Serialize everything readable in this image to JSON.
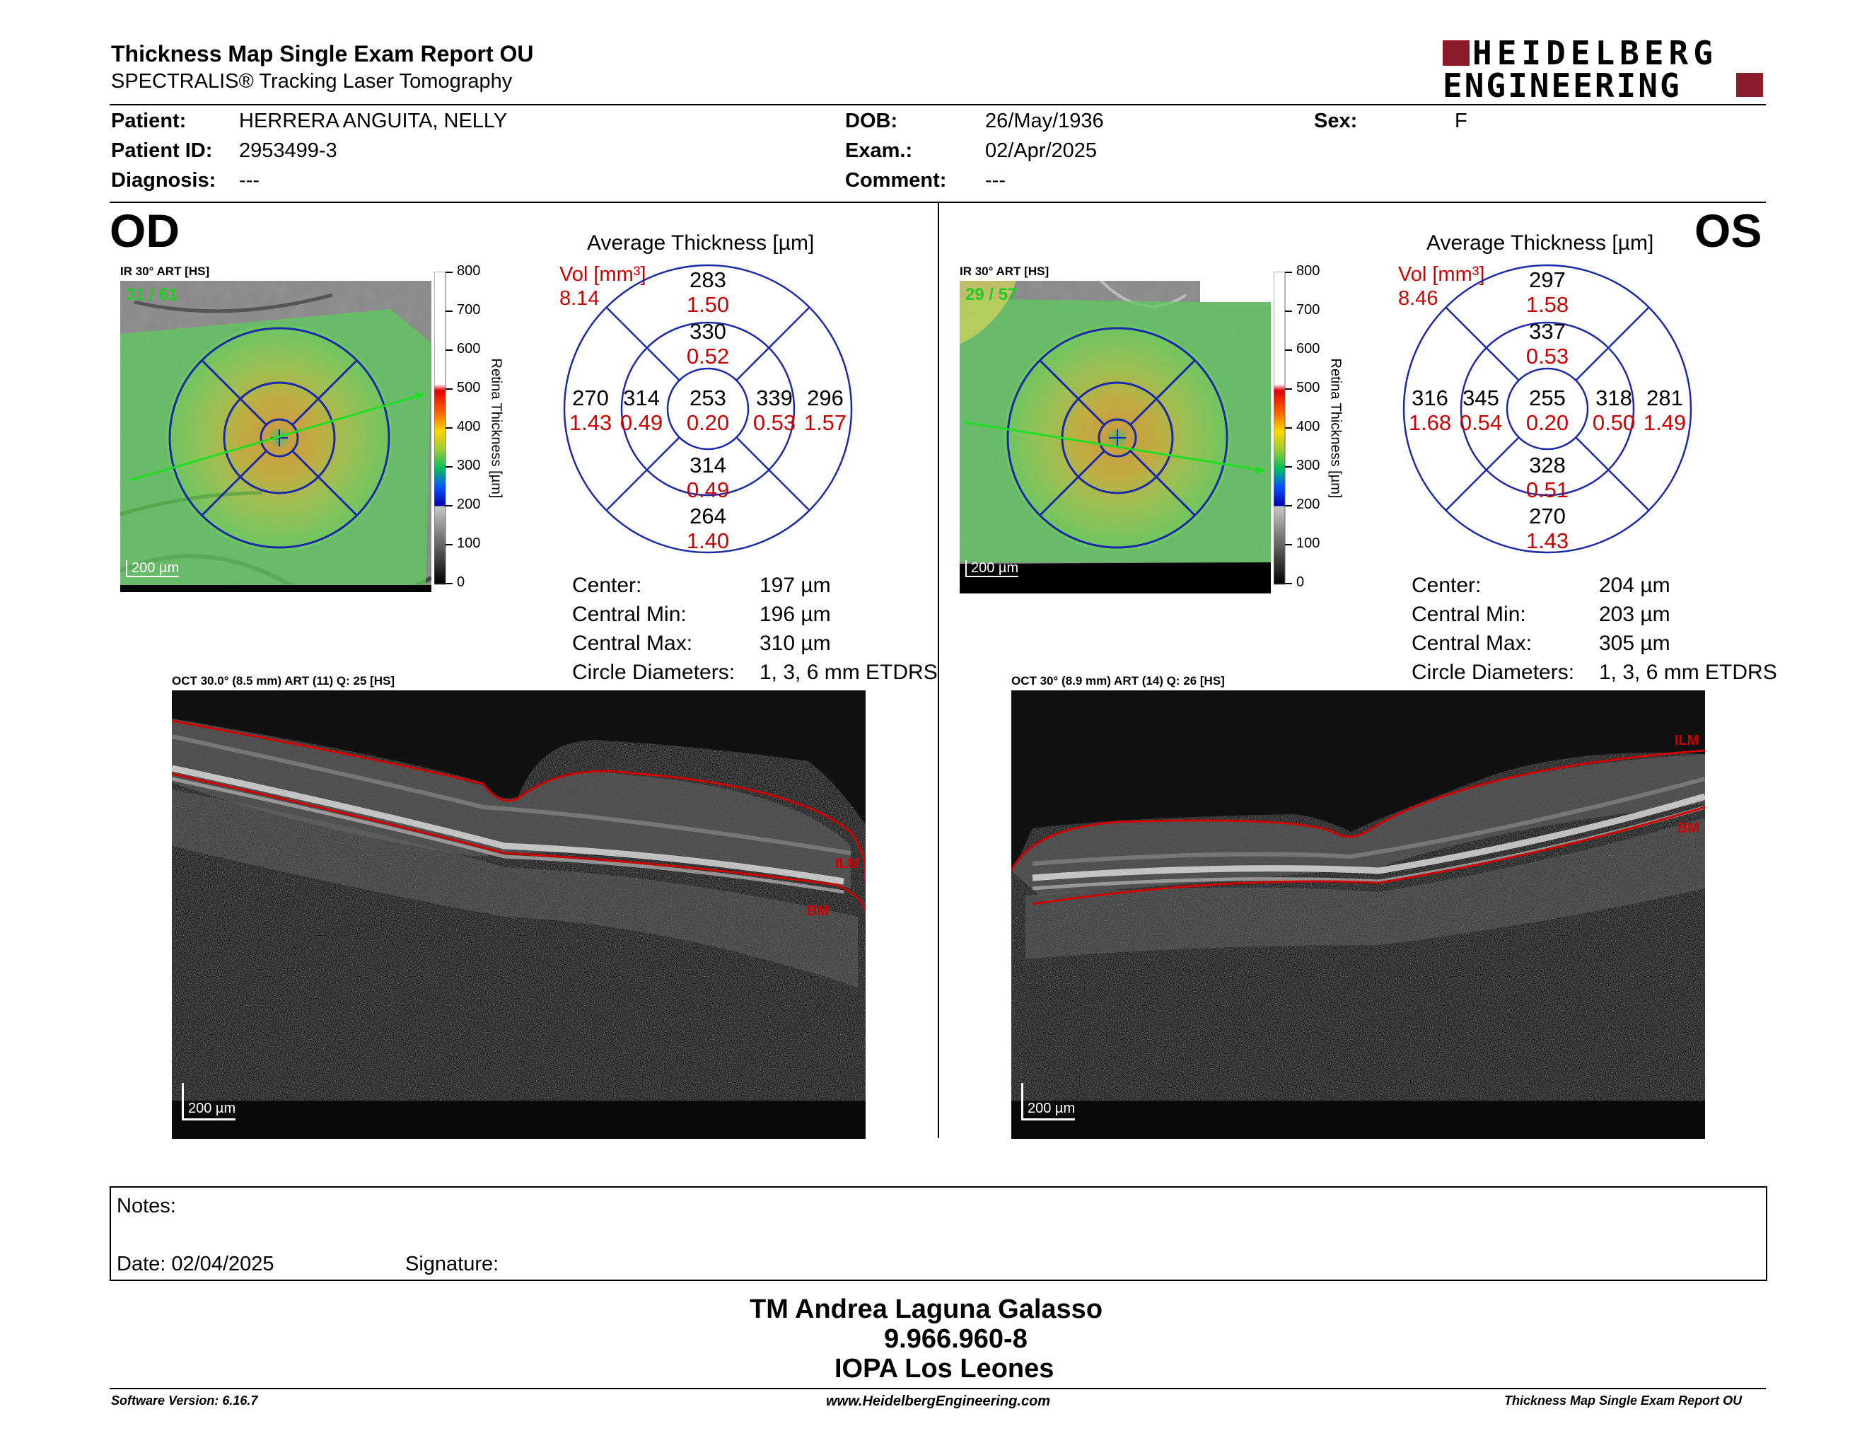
{
  "header": {
    "title": "Thickness Map Single Exam Report OU",
    "subtitle": "SPECTRALIS® Tracking Laser Tomography",
    "logo_line1": "HEIDELBERG",
    "logo_line2": "ENGINEERING",
    "logo_color": "#8b1a2b"
  },
  "patient": {
    "patient_label": "Patient:",
    "patient_value": "HERRERA ANGUITA, NELLY",
    "id_label": "Patient ID:",
    "id_value": "2953499-3",
    "diagnosis_label": "Diagnosis:",
    "diagnosis_value": "---",
    "dob_label": "DOB:",
    "dob_value": "26/May/1936",
    "exam_label": "Exam.:",
    "exam_value": "02/Apr/2025",
    "comment_label": "Comment:",
    "comment_value": "---",
    "sex_label": "Sex:",
    "sex_value": "F"
  },
  "colorbar": {
    "ticks": [
      "800",
      "700",
      "600",
      "500",
      "400",
      "300",
      "200",
      "100",
      "0"
    ],
    "label": "Retina Thickness [µm]"
  },
  "od": {
    "eye": "OD",
    "ir_caption": "IR 30° ART [HS]",
    "frame_count": "31 / 61",
    "ir_scale": "200 µm",
    "avg_title": "Average Thickness [µm]",
    "vol_label": "Vol [mm³]",
    "vol_value": "8.14",
    "grid": {
      "center": [
        "253",
        "0.20"
      ],
      "inner_top": [
        "330",
        "0.52"
      ],
      "inner_bottom": [
        "314",
        "0.49"
      ],
      "inner_left": [
        "314",
        "0.49"
      ],
      "inner_right": [
        "339",
        "0.53"
      ],
      "outer_top": [
        "283",
        "1.50"
      ],
      "outer_bottom": [
        "264",
        "1.40"
      ],
      "outer_left": [
        "270",
        "1.43"
      ],
      "outer_right": [
        "296",
        "1.57"
      ]
    },
    "stats": {
      "center_label": "Center:",
      "center_value": "197 µm",
      "min_label": "Central Min:",
      "min_value": "196 µm",
      "max_label": "Central Max:",
      "max_value": "310 µm",
      "circ_label": "Circle Diameters:",
      "circ_value": "1, 3, 6 mm ETDRS"
    },
    "oct_caption": "OCT 30.0° (8.5 mm) ART (11) Q: 25 [HS]",
    "ilm": "ILM",
    "bm": "BM",
    "oct_scale": "200 µm"
  },
  "os": {
    "eye": "OS",
    "ir_caption": "IR 30° ART [HS]",
    "frame_count": "29 / 57",
    "ir_scale": "200 µm",
    "avg_title": "Average Thickness [µm]",
    "vol_label": "Vol [mm³]",
    "vol_value": "8.46",
    "grid": {
      "center": [
        "255",
        "0.20"
      ],
      "inner_top": [
        "337",
        "0.53"
      ],
      "inner_bottom": [
        "328",
        "0.51"
      ],
      "inner_left": [
        "345",
        "0.54"
      ],
      "inner_right": [
        "318",
        "0.50"
      ],
      "outer_top": [
        "297",
        "1.58"
      ],
      "outer_bottom": [
        "270",
        "1.43"
      ],
      "outer_left": [
        "316",
        "1.68"
      ],
      "outer_right": [
        "281",
        "1.49"
      ]
    },
    "stats": {
      "center_label": "Center:",
      "center_value": "204 µm",
      "min_label": "Central Min:",
      "min_value": "203 µm",
      "max_label": "Central Max:",
      "max_value": "305 µm",
      "circ_label": "Circle Diameters:",
      "circ_value": "1, 3, 6 mm ETDRS"
    },
    "oct_caption": "OCT 30° (8.9 mm) ART (14) Q: 26 [HS]",
    "ilm": "ILM",
    "bm": "BM",
    "oct_scale": "200 µm"
  },
  "notes": {
    "notes_label": "Notes:",
    "date_label": "Date: 02/04/2025",
    "signature_label": "Signature:"
  },
  "signer": {
    "name": "TM Andrea Laguna Galasso",
    "id": "9.966.960-8",
    "place": "IOPA Los Leones"
  },
  "footer": {
    "software": "Software Version: 6.16.7",
    "website": "www.HeidelbergEngineering.com",
    "report": "Thickness Map Single Exam Report OU"
  },
  "colors": {
    "grid_blue": "#1a2aa8",
    "vol_red": "#cc0000",
    "segmentation_red": "#d00000"
  }
}
